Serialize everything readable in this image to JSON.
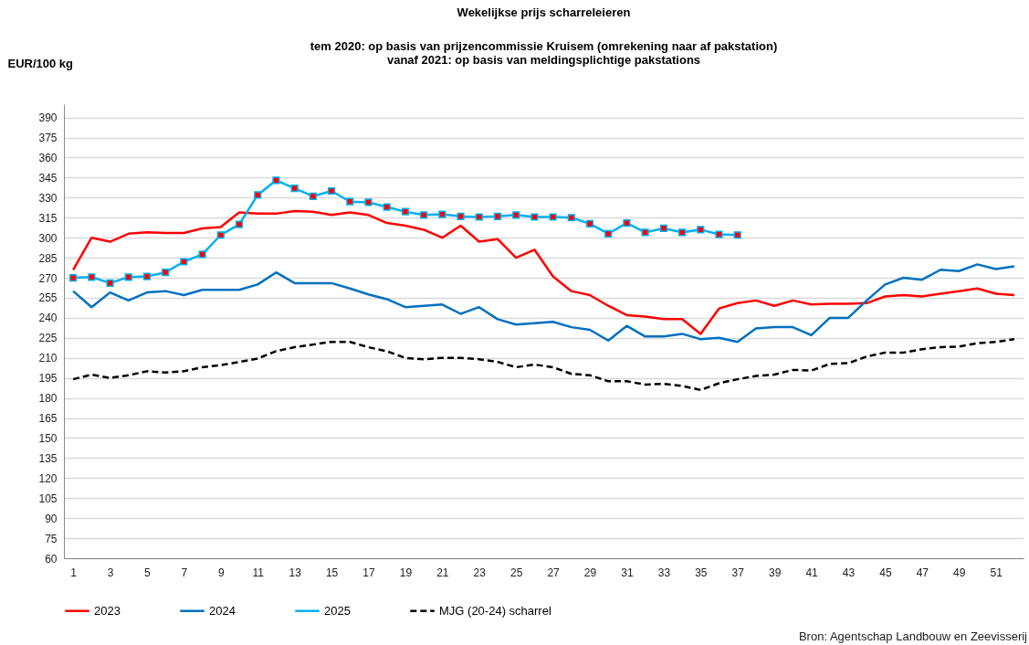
{
  "chart_data": {
    "type": "line",
    "title": "Wekelijkse prijs scharreleieren",
    "subtitle": "tem 2020: op basis van prijzencommissie Kruisem (omrekening naar af pakstation)\nvanaf 2021: op basis van meldingsplichtige pakstations",
    "ylabel": "EUR/100 kg",
    "annotations": [
      "Bron: Agentschap Landbouw en Zeevisserij"
    ],
    "x": [
      1,
      2,
      3,
      4,
      5,
      6,
      7,
      8,
      9,
      10,
      11,
      12,
      13,
      14,
      15,
      16,
      17,
      18,
      19,
      20,
      21,
      22,
      23,
      24,
      25,
      26,
      27,
      28,
      29,
      30,
      31,
      32,
      33,
      34,
      35,
      36,
      37,
      38,
      39,
      40,
      41,
      42,
      43,
      44,
      45,
      46,
      47,
      48,
      49,
      50,
      51,
      52
    ],
    "xlim": [
      0.5,
      52.5
    ],
    "xticks": [
      1,
      3,
      5,
      7,
      9,
      11,
      13,
      15,
      17,
      19,
      21,
      23,
      25,
      27,
      29,
      31,
      33,
      35,
      37,
      39,
      41,
      43,
      45,
      47,
      49,
      51
    ],
    "series": [
      {
        "name": "2023",
        "color": "#ff0000",
        "line_style": "solid",
        "values": [
          276,
          300,
          297,
          303,
          304,
          303.5,
          303.5,
          307,
          308,
          319,
          318,
          318,
          320,
          319.5,
          317,
          319,
          317,
          311,
          309,
          306,
          300,
          309,
          297,
          299,
          285,
          291,
          271,
          260,
          257,
          249,
          242,
          241,
          239,
          239,
          228,
          247,
          251,
          253,
          249,
          253,
          250,
          250.5,
          250.5,
          251,
          256,
          257,
          256,
          258,
          260,
          262,
          258,
          257
        ]
      },
      {
        "name": "2024",
        "color": "#0070c0",
        "line_style": "solid",
        "values": [
          260,
          248,
          259,
          253,
          259,
          260,
          257,
          261,
          261,
          261,
          265,
          274,
          266,
          266,
          266,
          262,
          257.5,
          254,
          248,
          249,
          250,
          243,
          248,
          239,
          235,
          236,
          237,
          233,
          231,
          223,
          234,
          226,
          226,
          228,
          224,
          225,
          222,
          232,
          233,
          233,
          227,
          240,
          240,
          253,
          265,
          270,
          268.5,
          276,
          275,
          280,
          276.5,
          278.5
        ]
      },
      {
        "name": "2025",
        "color": "#00b0f0",
        "line_style": "solid",
        "marker": "square",
        "values": [
          270,
          270.5,
          266,
          270.5,
          271,
          274,
          282,
          287.5,
          302,
          310,
          332,
          343,
          337,
          331,
          335,
          327,
          326.5,
          323,
          319.5,
          317,
          317.5,
          316,
          315.5,
          316,
          317,
          315.5,
          315.5,
          315,
          310.5,
          303,
          311,
          304,
          307,
          304,
          306,
          302.5,
          302,
          null,
          null,
          null,
          null,
          null,
          null,
          null,
          null,
          null,
          null,
          null,
          null,
          null,
          null,
          null
        ]
      },
      {
        "name": "MJG (20-24) scharrel",
        "color": "#000000",
        "line_style": "dashed",
        "values": [
          194,
          197.5,
          195,
          197,
          200,
          199,
          200,
          203,
          204.5,
          207,
          209.5,
          215,
          218,
          220,
          222,
          222,
          218,
          215,
          210,
          209,
          210,
          210,
          209,
          207,
          203,
          205,
          203,
          198,
          197,
          192.5,
          192.5,
          190,
          190.5,
          189,
          186,
          191,
          194,
          196.5,
          197.5,
          201,
          200.5,
          205.5,
          206,
          211,
          214,
          214,
          216.5,
          218,
          218.5,
          221,
          222,
          224
        ]
      }
    ],
    "ylim": [
      60,
      400
    ],
    "yticks": [
      60,
      75,
      90,
      105,
      120,
      135,
      150,
      165,
      180,
      195,
      210,
      225,
      240,
      255,
      270,
      285,
      300,
      315,
      330,
      345,
      360,
      375,
      390
    ],
    "grid": "y",
    "legend": "bottom"
  }
}
